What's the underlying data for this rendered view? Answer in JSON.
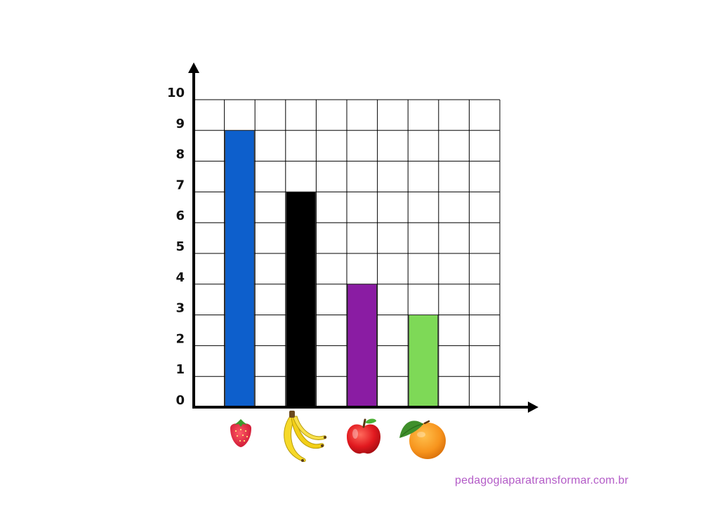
{
  "chart_data": {
    "type": "bar",
    "title": "",
    "xlabel": "",
    "ylabel": "",
    "ylim": [
      0,
      10
    ],
    "yticks": [
      "0",
      "1",
      "2",
      "3",
      "4",
      "5",
      "6",
      "7",
      "8",
      "9",
      "10"
    ],
    "grid": true,
    "categories": [
      "strawberry",
      "banana",
      "apple",
      "orange"
    ],
    "values": [
      9,
      7,
      4,
      3
    ],
    "colors": [
      "#0d5fcc",
      "#000000",
      "#8a1ca3",
      "#7ed957"
    ],
    "category_icons": [
      "strawberry-icon",
      "banana-icon",
      "apple-icon",
      "orange-icon"
    ]
  },
  "footer": {
    "website": "pedagogiaparatransformar.com.br"
  },
  "colors": {
    "axis": "#000000",
    "grid": "#000000",
    "watermark": "#b35bc7"
  }
}
